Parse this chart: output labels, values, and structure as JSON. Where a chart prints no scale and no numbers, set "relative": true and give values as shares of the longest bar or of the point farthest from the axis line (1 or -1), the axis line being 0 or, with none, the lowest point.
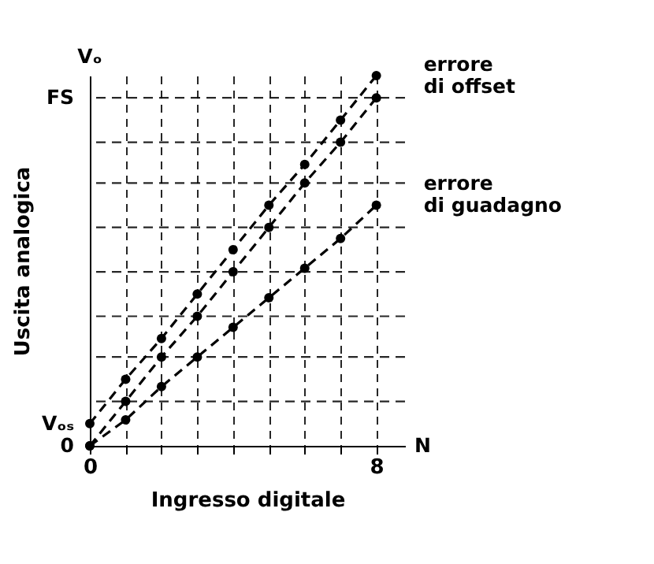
{
  "chart_data": {
    "type": "line",
    "xlabel": "Ingresso digitale",
    "ylabel": "Uscita analogica",
    "relative": true,
    "x": [
      0,
      1,
      2,
      3,
      4,
      5,
      6,
      7,
      8
    ],
    "series": [
      {
        "color": "#000000",
        "values": [
          0.06,
          0.18,
          0.29,
          0.41,
          0.53,
          0.65,
          0.76,
          0.88,
          1
        ]
      },
      {
        "color": "#000000",
        "values": [
          0,
          0.12,
          0.24,
          0.35,
          0.47,
          0.59,
          0.71,
          0.82,
          0.94
        ]
      },
      {
        "color": "#000000",
        "values": [
          0,
          0.07,
          0.16,
          0.24,
          0.32,
          0.4,
          0.48,
          0.56,
          0.65
        ]
      }
    ],
    "xlim": [
      0,
      8.8
    ],
    "xticks": [
      0,
      {
        "value": 1,
        "label": null
      },
      {
        "value": 2,
        "label": null
      },
      {
        "value": 3,
        "label": null
      },
      {
        "value": 4,
        "label": null
      },
      {
        "value": 5,
        "label": null
      },
      {
        "value": 6,
        "label": null
      },
      {
        "value": 7,
        "label": null
      },
      8
    ],
    "ref_lines": [
      {
        "axis": "y",
        "value": 0.12,
        "line_style": "dashed"
      },
      {
        "axis": "y",
        "value": 0.24,
        "line_style": "dashed"
      },
      {
        "axis": "y",
        "value": 0.35,
        "line_style": "dashed"
      },
      {
        "axis": "y",
        "value": 0.47,
        "line_style": "dashed"
      },
      {
        "axis": "y",
        "value": 0.59,
        "line_style": "dashed"
      },
      {
        "axis": "y",
        "value": 0.71,
        "line_style": "dashed"
      },
      {
        "axis": "y",
        "value": 0.82,
        "line_style": "dashed"
      },
      {
        "axis": "y",
        "value": 0.94,
        "line_style": "dashed"
      }
    ],
    "grid": "x",
    "marker": "circle",
    "line_style": "dashed",
    "annotations": [
      "Vₒ",
      "N",
      "0",
      "Vₒₛ",
      "FS",
      {
        "text": "errore di offset",
        "x": 8,
        "y": 0.97
      },
      {
        "text": "errore di guadagno",
        "x": 8,
        "y": 0.65
      }
    ]
  }
}
